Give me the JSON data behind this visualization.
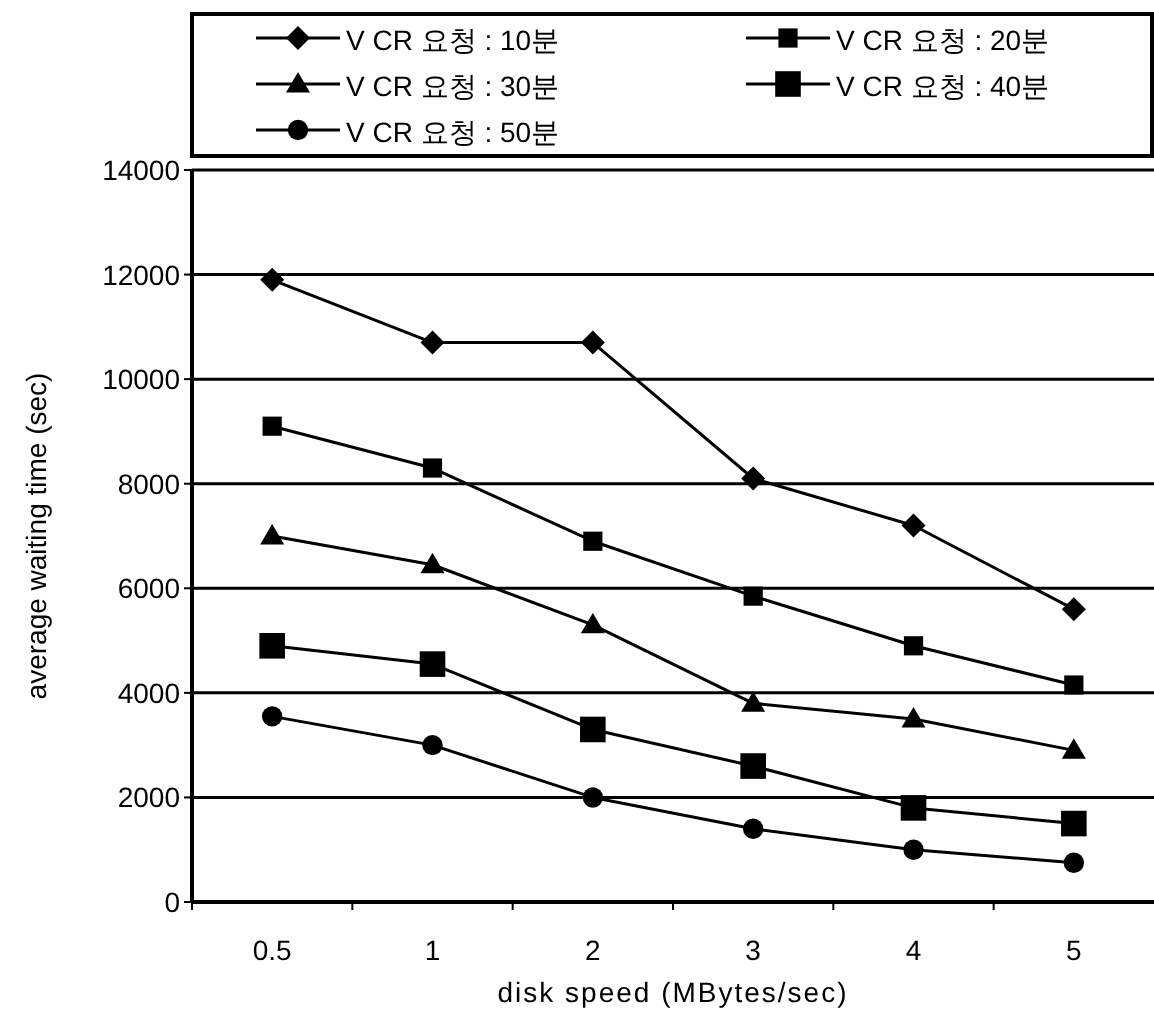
{
  "chart_data": {
    "type": "line",
    "xlabel": "disk speed (MBytes/sec)",
    "ylabel": "average waiting time (sec)",
    "categories": [
      "0.5",
      "1",
      "2",
      "3",
      "4",
      "5"
    ],
    "ylim": [
      0,
      14000
    ],
    "yticks": [
      0,
      2000,
      4000,
      6000,
      8000,
      10000,
      12000,
      14000
    ],
    "grid": "y",
    "legend": "top",
    "line_style": "solid",
    "series": [
      {
        "name": "V CR 요청 : 10분",
        "color": "#000000",
        "marker": "diamond",
        "values": [
          11900,
          10700,
          10700,
          8100,
          7200,
          5600
        ]
      },
      {
        "name": "V CR 요청 : 20분",
        "color": "#000000",
        "marker": "square",
        "values": [
          9100,
          8300,
          6900,
          5850,
          4900,
          4150
        ]
      },
      {
        "name": "V CR 요청 : 30분",
        "color": "#000000",
        "marker": "triangle",
        "values": [
          7000,
          6450,
          5300,
          3800,
          3500,
          2900
        ]
      },
      {
        "name": "V CR 요청 : 40분",
        "color": "#000000",
        "marker": "square",
        "values": [
          4900,
          4550,
          3300,
          2600,
          1800,
          1500
        ]
      },
      {
        "name": "V CR 요청 : 50분",
        "color": "#000000",
        "marker": "circle",
        "values": [
          3550,
          3000,
          2000,
          1400,
          1000,
          750
        ]
      }
    ]
  }
}
